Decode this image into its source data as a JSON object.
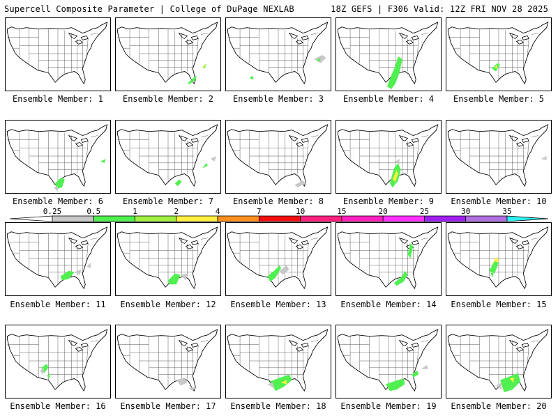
{
  "header": {
    "left": "Supercell Composite Parameter | College of DuPage NEXLAB",
    "right": "18Z GEFS | F306 Valid: 12Z FRI NOV 28 2025"
  },
  "colorbar": {
    "labels": [
      "0.25",
      "0.5",
      "1",
      "2",
      "4",
      "7",
      "10",
      "15",
      "20",
      "25",
      "30",
      "35"
    ],
    "colors": [
      "#c8c8c8",
      "#50f050",
      "#a0f040",
      "#fff040",
      "#ff9020",
      "#f01010",
      "#ff2080",
      "#ff20c0",
      "#ff30ff",
      "#a020f0",
      "#b070e0",
      "#30f0f0"
    ]
  },
  "members": [
    {
      "label": "Ensemble Member: 1"
    },
    {
      "label": "Ensemble Member: 2"
    },
    {
      "label": "Ensemble Member: 3"
    },
    {
      "label": "Ensemble Member: 4"
    },
    {
      "label": "Ensemble Member: 5"
    },
    {
      "label": "Ensemble Member: 6"
    },
    {
      "label": "Ensemble Member: 7"
    },
    {
      "label": "Ensemble Member: 8"
    },
    {
      "label": "Ensemble Member: 9"
    },
    {
      "label": "Ensemble Member: 10"
    },
    {
      "label": "Ensemble Member: 11"
    },
    {
      "label": "Ensemble Member: 12"
    },
    {
      "label": "Ensemble Member: 13"
    },
    {
      "label": "Ensemble Member: 14"
    },
    {
      "label": "Ensemble Member: 15"
    },
    {
      "label": "Ensemble Member: 16"
    },
    {
      "label": "Ensemble Member: 17"
    },
    {
      "label": "Ensemble Member: 18"
    },
    {
      "label": "Ensemble Member: 19"
    },
    {
      "label": "Ensemble Member: 20"
    }
  ]
}
